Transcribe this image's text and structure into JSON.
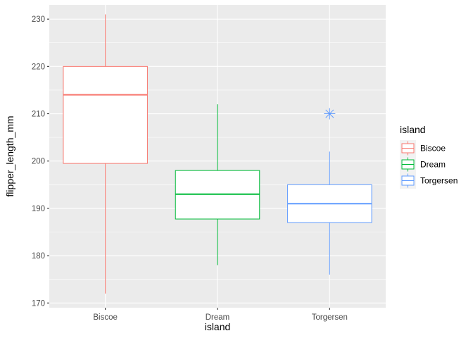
{
  "chart_data": {
    "type": "boxplot",
    "xlabel": "island",
    "ylabel": "flipper_length_mm",
    "ylim": [
      169,
      233
    ],
    "yticks": [
      170,
      180,
      190,
      200,
      210,
      220,
      230
    ],
    "grid": true,
    "legend_title": "island",
    "legend_position": "right",
    "categories": [
      "Biscoe",
      "Dream",
      "Torgersen"
    ],
    "series": [
      {
        "name": "Biscoe",
        "color": "#f8766d",
        "min": 172,
        "q1": 199.5,
        "median": 214,
        "q3": 220,
        "max": 231,
        "outliers": []
      },
      {
        "name": "Dream",
        "color": "#00ba38",
        "min": 178,
        "q1": 187.75,
        "median": 193,
        "q3": 198,
        "max": 212,
        "outliers": []
      },
      {
        "name": "Torgersen",
        "color": "#619cff",
        "min": 176,
        "q1": 187,
        "median": 191,
        "q3": 195,
        "max": 202,
        "outliers": [
          210
        ]
      }
    ]
  }
}
